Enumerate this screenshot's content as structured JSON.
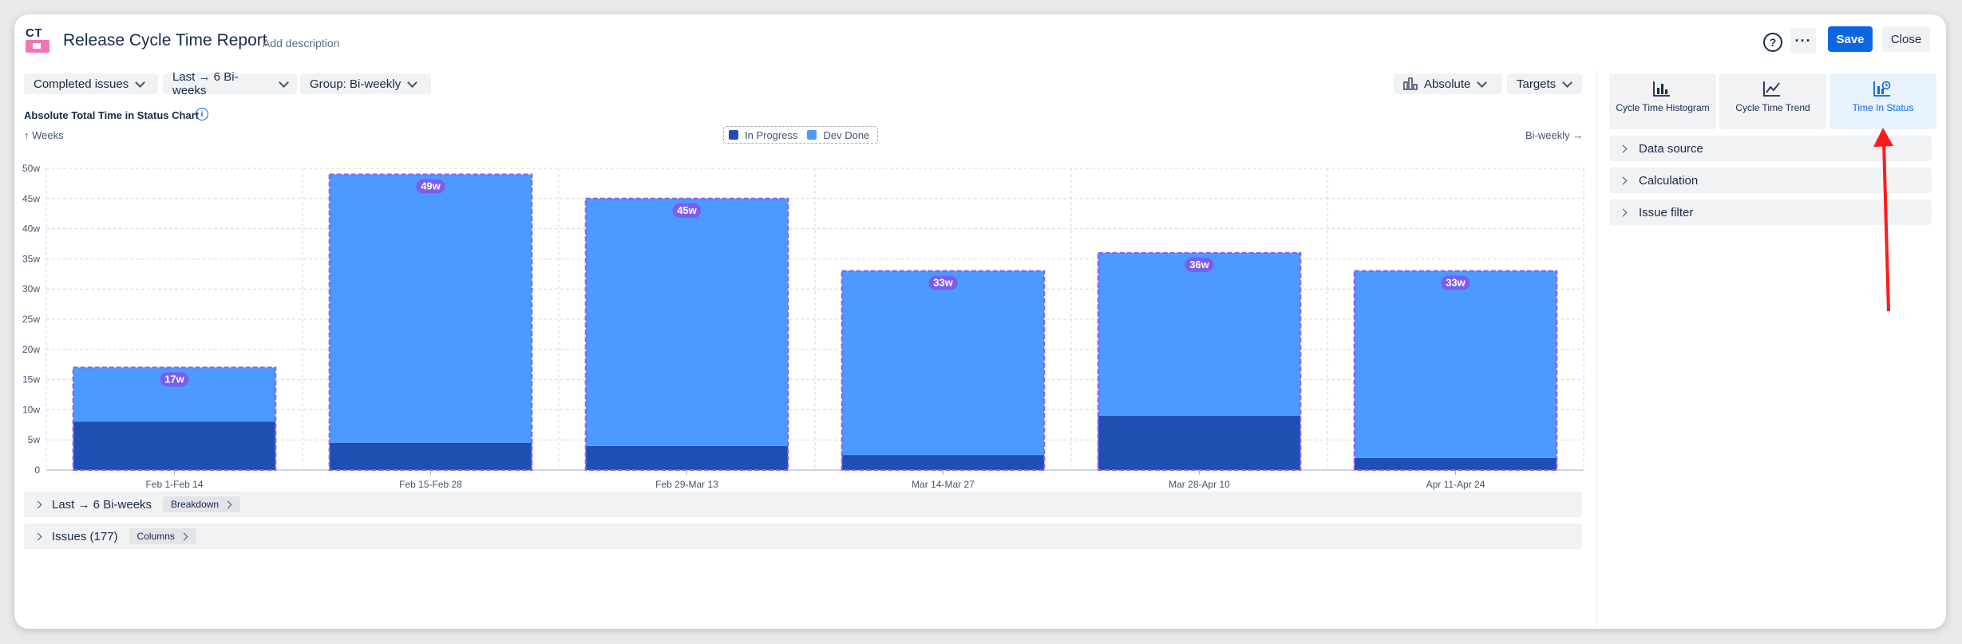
{
  "header": {
    "logo_text": "CT",
    "title": "Release Cycle Time Report",
    "add_description": "Add description",
    "help_glyph": "?",
    "more_glyph": "···",
    "save_label": "Save",
    "close_label": "Close"
  },
  "filters": {
    "issues_filter": "Completed issues",
    "range_filter": "Last → 6 Bi-weeks",
    "group_filter": "Group: Bi-weekly",
    "mode_filter": "Absolute",
    "targets_filter": "Targets"
  },
  "chart_section": {
    "title": "Absolute Total Time in Status Chart",
    "info_glyph": "i",
    "y_hint": "↑ Weeks",
    "x_hint": "Bi-weekly →"
  },
  "chart_data": {
    "type": "bar",
    "stacked": true,
    "categories": [
      "Feb 1-Feb 14",
      "Feb 15-Feb 28",
      "Feb 29-Mar 13",
      "Mar 14-Mar 27",
      "Mar 28-Apr 10",
      "Apr 11-Apr 24"
    ],
    "series": [
      {
        "name": "In Progress",
        "color": "#1f4fb3",
        "values": [
          8,
          4.5,
          4,
          2.5,
          9,
          2
        ]
      },
      {
        "name": "Dev Done",
        "color": "#4c9aff",
        "values": [
          9,
          44.5,
          41,
          30.5,
          27,
          31
        ]
      }
    ],
    "totals": [
      17,
      49,
      45,
      33,
      36,
      33
    ],
    "total_labels": [
      "17w",
      "49w",
      "45w",
      "33w",
      "36w",
      "33w"
    ],
    "ylim": [
      0,
      50
    ],
    "y_ticks": [
      0,
      5,
      10,
      15,
      20,
      25,
      30,
      35,
      40,
      45,
      50
    ],
    "y_tick_labels": [
      "0",
      "5w",
      "10w",
      "15w",
      "20w",
      "25w",
      "30w",
      "35w",
      "40w",
      "45w",
      "50w"
    ],
    "grid": true,
    "legend_position": "top-center"
  },
  "sections": {
    "breakdown_row": {
      "label": "Last → 6 Bi-weeks",
      "chip": "Breakdown"
    },
    "issues_row": {
      "label": "Issues (177)",
      "chip": "Columns"
    }
  },
  "panel": {
    "tiles": [
      {
        "label": "Cycle Time Histogram",
        "icon": "histogram-icon",
        "active": false
      },
      {
        "label": "Cycle Time Trend",
        "icon": "trend-line-icon",
        "active": false
      },
      {
        "label": "Time In Status",
        "icon": "time-in-status-icon",
        "active": true
      }
    ],
    "accordions": [
      "Data source",
      "Calculation",
      "Issue filter"
    ]
  },
  "annotation": {
    "arrow_color": "#ff1a1a"
  }
}
